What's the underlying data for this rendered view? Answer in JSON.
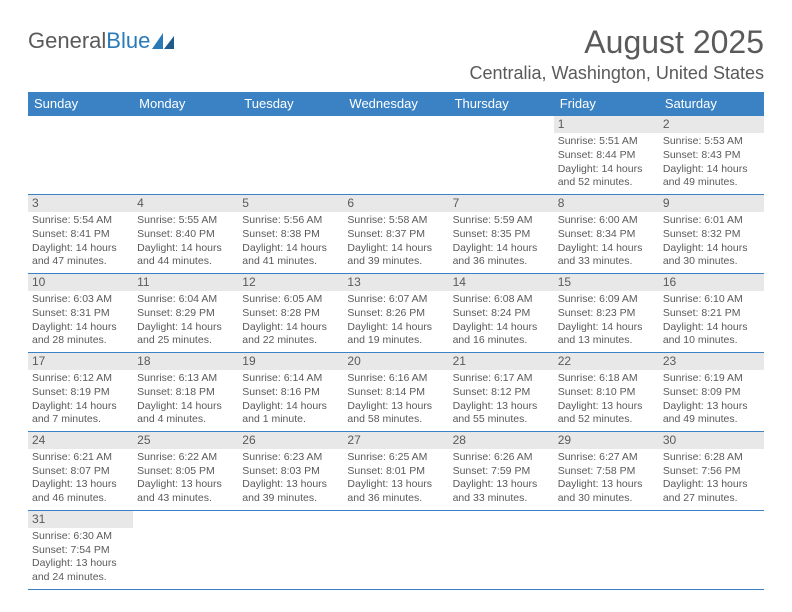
{
  "brand": {
    "general": "General",
    "blue": "Blue"
  },
  "title": "August 2025",
  "location": "Centralia, Washington, United States",
  "colors": {
    "header_bg": "#3b82c4",
    "header_text": "#ffffff",
    "text": "#5a5a5a",
    "daynum_bg": "#e8e8e8",
    "border": "#3b82c4",
    "logo_blue": "#2a7ab8",
    "background": "#ffffff"
  },
  "columns": [
    "Sunday",
    "Monday",
    "Tuesday",
    "Wednesday",
    "Thursday",
    "Friday",
    "Saturday"
  ],
  "weeks": [
    [
      null,
      null,
      null,
      null,
      null,
      {
        "n": "1",
        "sunrise": "5:51 AM",
        "sunset": "8:44 PM",
        "daylight": "14 hours and 52 minutes."
      },
      {
        "n": "2",
        "sunrise": "5:53 AM",
        "sunset": "8:43 PM",
        "daylight": "14 hours and 49 minutes."
      }
    ],
    [
      {
        "n": "3",
        "sunrise": "5:54 AM",
        "sunset": "8:41 PM",
        "daylight": "14 hours and 47 minutes."
      },
      {
        "n": "4",
        "sunrise": "5:55 AM",
        "sunset": "8:40 PM",
        "daylight": "14 hours and 44 minutes."
      },
      {
        "n": "5",
        "sunrise": "5:56 AM",
        "sunset": "8:38 PM",
        "daylight": "14 hours and 41 minutes."
      },
      {
        "n": "6",
        "sunrise": "5:58 AM",
        "sunset": "8:37 PM",
        "daylight": "14 hours and 39 minutes."
      },
      {
        "n": "7",
        "sunrise": "5:59 AM",
        "sunset": "8:35 PM",
        "daylight": "14 hours and 36 minutes."
      },
      {
        "n": "8",
        "sunrise": "6:00 AM",
        "sunset": "8:34 PM",
        "daylight": "14 hours and 33 minutes."
      },
      {
        "n": "9",
        "sunrise": "6:01 AM",
        "sunset": "8:32 PM",
        "daylight": "14 hours and 30 minutes."
      }
    ],
    [
      {
        "n": "10",
        "sunrise": "6:03 AM",
        "sunset": "8:31 PM",
        "daylight": "14 hours and 28 minutes."
      },
      {
        "n": "11",
        "sunrise": "6:04 AM",
        "sunset": "8:29 PM",
        "daylight": "14 hours and 25 minutes."
      },
      {
        "n": "12",
        "sunrise": "6:05 AM",
        "sunset": "8:28 PM",
        "daylight": "14 hours and 22 minutes."
      },
      {
        "n": "13",
        "sunrise": "6:07 AM",
        "sunset": "8:26 PM",
        "daylight": "14 hours and 19 minutes."
      },
      {
        "n": "14",
        "sunrise": "6:08 AM",
        "sunset": "8:24 PM",
        "daylight": "14 hours and 16 minutes."
      },
      {
        "n": "15",
        "sunrise": "6:09 AM",
        "sunset": "8:23 PM",
        "daylight": "14 hours and 13 minutes."
      },
      {
        "n": "16",
        "sunrise": "6:10 AM",
        "sunset": "8:21 PM",
        "daylight": "14 hours and 10 minutes."
      }
    ],
    [
      {
        "n": "17",
        "sunrise": "6:12 AM",
        "sunset": "8:19 PM",
        "daylight": "14 hours and 7 minutes."
      },
      {
        "n": "18",
        "sunrise": "6:13 AM",
        "sunset": "8:18 PM",
        "daylight": "14 hours and 4 minutes."
      },
      {
        "n": "19",
        "sunrise": "6:14 AM",
        "sunset": "8:16 PM",
        "daylight": "14 hours and 1 minute."
      },
      {
        "n": "20",
        "sunrise": "6:16 AM",
        "sunset": "8:14 PM",
        "daylight": "13 hours and 58 minutes."
      },
      {
        "n": "21",
        "sunrise": "6:17 AM",
        "sunset": "8:12 PM",
        "daylight": "13 hours and 55 minutes."
      },
      {
        "n": "22",
        "sunrise": "6:18 AM",
        "sunset": "8:10 PM",
        "daylight": "13 hours and 52 minutes."
      },
      {
        "n": "23",
        "sunrise": "6:19 AM",
        "sunset": "8:09 PM",
        "daylight": "13 hours and 49 minutes."
      }
    ],
    [
      {
        "n": "24",
        "sunrise": "6:21 AM",
        "sunset": "8:07 PM",
        "daylight": "13 hours and 46 minutes."
      },
      {
        "n": "25",
        "sunrise": "6:22 AM",
        "sunset": "8:05 PM",
        "daylight": "13 hours and 43 minutes."
      },
      {
        "n": "26",
        "sunrise": "6:23 AM",
        "sunset": "8:03 PM",
        "daylight": "13 hours and 39 minutes."
      },
      {
        "n": "27",
        "sunrise": "6:25 AM",
        "sunset": "8:01 PM",
        "daylight": "13 hours and 36 minutes."
      },
      {
        "n": "28",
        "sunrise": "6:26 AM",
        "sunset": "7:59 PM",
        "daylight": "13 hours and 33 minutes."
      },
      {
        "n": "29",
        "sunrise": "6:27 AM",
        "sunset": "7:58 PM",
        "daylight": "13 hours and 30 minutes."
      },
      {
        "n": "30",
        "sunrise": "6:28 AM",
        "sunset": "7:56 PM",
        "daylight": "13 hours and 27 minutes."
      }
    ],
    [
      {
        "n": "31",
        "sunrise": "6:30 AM",
        "sunset": "7:54 PM",
        "daylight": "13 hours and 24 minutes."
      },
      null,
      null,
      null,
      null,
      null,
      null
    ]
  ],
  "labels": {
    "sunrise": "Sunrise: ",
    "sunset": "Sunset: ",
    "daylight": "Daylight: "
  }
}
